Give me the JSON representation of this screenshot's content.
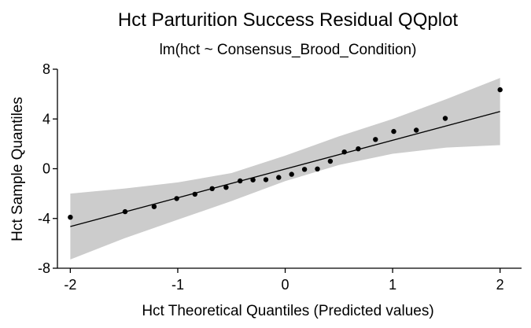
{
  "chart_data": {
    "type": "scatter",
    "title": "Hct Parturition Success Residual QQplot",
    "subtitle": "lm(hct ~ Consensus_Brood_Condition)",
    "xlabel": "Hct Theoretical Quantiles (Predicted values)",
    "ylabel": "Hct Sample Quantiles",
    "xlim": [
      -2.12,
      2.2
    ],
    "ylim": [
      -8,
      8
    ],
    "x_ticks": [
      -2,
      -1,
      0,
      1,
      2
    ],
    "x_tick_labels": [
      "-2",
      "-1",
      "0",
      "1",
      "2"
    ],
    "y_ticks": [
      -8,
      -4,
      0,
      4,
      8
    ],
    "y_tick_labels": [
      "-8",
      "-4",
      "0",
      "4",
      "8"
    ],
    "grid": false,
    "legend": "none",
    "points": {
      "x": [
        -2.0,
        -1.49,
        -1.22,
        -1.01,
        -0.84,
        -0.68,
        -0.55,
        -0.42,
        -0.3,
        -0.18,
        -0.06,
        0.06,
        0.18,
        0.3,
        0.42,
        0.55,
        0.68,
        0.84,
        1.01,
        1.22,
        1.49,
        2.0
      ],
      "y": [
        -3.9,
        -3.45,
        -3.05,
        -2.4,
        -2.05,
        -1.6,
        -1.5,
        -0.98,
        -0.9,
        -0.88,
        -0.7,
        -0.45,
        -0.05,
        -0.02,
        0.6,
        1.35,
        1.6,
        2.35,
        3.0,
        3.1,
        4.05,
        6.35
      ]
    },
    "reference_line": {
      "x": [
        -2.0,
        2.0
      ],
      "y": [
        -4.65,
        4.6
      ]
    },
    "confidence_band": {
      "x": [
        -2.0,
        -1.5,
        -1.0,
        -0.5,
        0.0,
        0.5,
        1.0,
        1.5,
        2.0
      ],
      "lower": [
        -7.3,
        -5.6,
        -4.1,
        -2.6,
        -1.0,
        0.3,
        1.2,
        1.7,
        1.9
      ],
      "upper": [
        -2.0,
        -1.6,
        -1.1,
        -0.35,
        1.05,
        2.6,
        4.0,
        5.6,
        7.3
      ]
    },
    "colors": {
      "points": "#000000",
      "line": "#000000",
      "band": "#cccccc",
      "axis": "#000000"
    }
  }
}
